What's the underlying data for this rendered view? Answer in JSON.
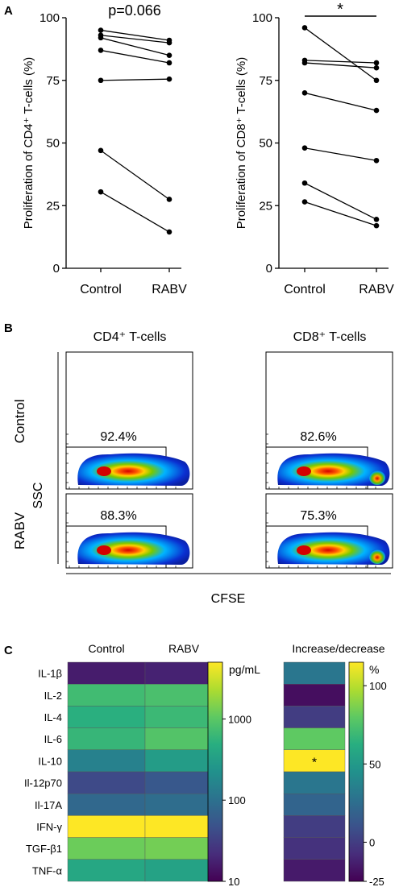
{
  "panels": {
    "A": {
      "letter": "A"
    },
    "B": {
      "letter": "B"
    },
    "C": {
      "letter": "C"
    }
  },
  "chart_data": [
    {
      "id": "a1",
      "type": "paired-dot-line",
      "ylabel": "Proliferation of CD4⁺ T-cells (%)",
      "categories": [
        "Control",
        "RABV"
      ],
      "ylim": [
        0,
        100
      ],
      "yticks": [
        "0",
        "25",
        "50",
        "75",
        "100"
      ],
      "annotation": "p=0.066",
      "pairs": [
        [
          95,
          91
        ],
        [
          93,
          90
        ],
        [
          92,
          85
        ],
        [
          87,
          82
        ],
        [
          75,
          75.5
        ],
        [
          47,
          27.5
        ],
        [
          30.5,
          14.5
        ]
      ]
    },
    {
      "id": "a2",
      "type": "paired-dot-line",
      "ylabel": "Proliferation of CD8⁺ T-cells (%)",
      "categories": [
        "Control",
        "RABV"
      ],
      "ylim": [
        0,
        100
      ],
      "yticks": [
        "0",
        "25",
        "50",
        "75",
        "100"
      ],
      "annotation": "*",
      "pairs": [
        [
          96,
          75
        ],
        [
          83,
          82
        ],
        [
          82,
          80
        ],
        [
          70,
          63
        ],
        [
          48,
          43
        ],
        [
          34,
          19.5
        ],
        [
          26.5,
          17
        ]
      ]
    },
    {
      "id": "b",
      "type": "flow-density-grid",
      "columns": [
        "CD4⁺ T-cells",
        "CD8⁺ T-cells"
      ],
      "rows": [
        "Control",
        "RABV"
      ],
      "ylabel": "SSC",
      "xlabel": "CFSE",
      "gates": [
        [
          "92.4%",
          "82.6%"
        ],
        [
          "88.3%",
          "75.3%"
        ]
      ]
    },
    {
      "id": "c1",
      "type": "heatmap",
      "columns": [
        "Control",
        "RABV"
      ],
      "rows": [
        "IL-1β",
        "IL-2",
        "IL-4",
        "IL-6",
        "IL-10",
        "Il-12p70",
        "Il-17A",
        "IFN-γ",
        "TGF-β1",
        "TNF-α"
      ],
      "values": [
        [
          16,
          18
        ],
        [
          700,
          800
        ],
        [
          500,
          650
        ],
        [
          600,
          900
        ],
        [
          150,
          300
        ],
        [
          40,
          55
        ],
        [
          80,
          90
        ],
        [
          5000,
          5000
        ],
        [
          1200,
          1300
        ],
        [
          400,
          350
        ]
      ],
      "colorbar": {
        "label": "pg/mL",
        "scale": "log",
        "range": [
          10,
          5000
        ],
        "ticks": [
          "10",
          "100",
          "1000"
        ]
      }
    },
    {
      "id": "c2",
      "type": "heatmap",
      "title": "Increase/decrease",
      "rows": [
        "IL-1β",
        "IL-2",
        "IL-4",
        "IL-6",
        "IL-10",
        "Il-12p70",
        "Il-17A",
        "IFN-γ",
        "TGF-β1",
        "TNF-α"
      ],
      "values": [
        30,
        -20,
        0,
        80,
        115,
        30,
        20,
        0,
        -5,
        -15
      ],
      "marks": [
        "",
        "",
        "",
        "",
        "*",
        "",
        "",
        "",
        "",
        ""
      ],
      "colorbar": {
        "label": "%",
        "range": [
          -25,
          115
        ],
        "ticks": [
          "-25",
          "0",
          "50",
          "100"
        ]
      }
    }
  ]
}
